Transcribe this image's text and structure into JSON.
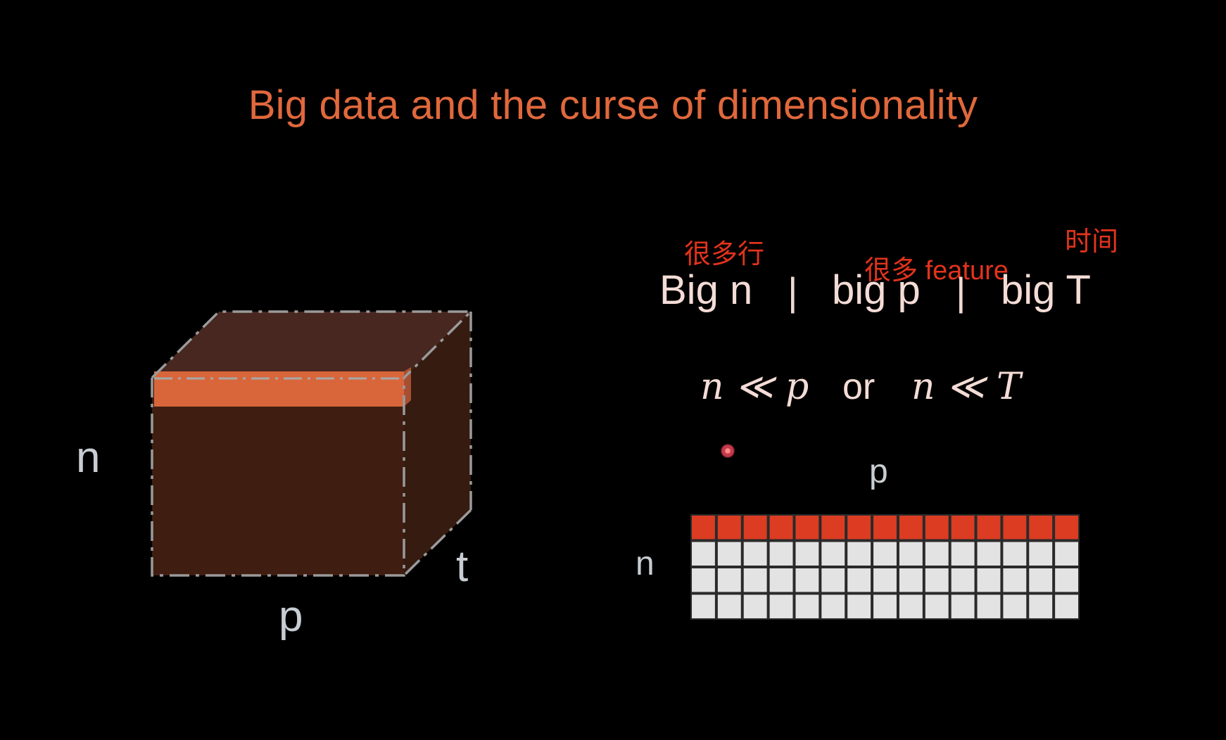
{
  "title": "Big data and the curse of dimensionality",
  "cube": {
    "labels": {
      "n": "n",
      "p": "p",
      "t": "t"
    },
    "colors": {
      "front": "#3f1d11",
      "top": "#47271f",
      "side": "#361b10",
      "slice": "#d9663a",
      "dash": "#9a9a9a"
    }
  },
  "big_row": {
    "items": [
      "Big n",
      "big p",
      "big T"
    ],
    "separators": [
      "|",
      "|"
    ]
  },
  "annotations": {
    "rows": "很多行",
    "features": "很多 feature",
    "time": "时间"
  },
  "inequalities": {
    "left": "n ≪ p",
    "or": "or",
    "right": "n ≪ T"
  },
  "matrix": {
    "label_p": "p",
    "label_n": "n",
    "columns": 15,
    "rows": 4,
    "highlight_row_color": "#dc3c22",
    "cell_color": "#e3e3e3"
  },
  "accent_color": "#e0683c"
}
